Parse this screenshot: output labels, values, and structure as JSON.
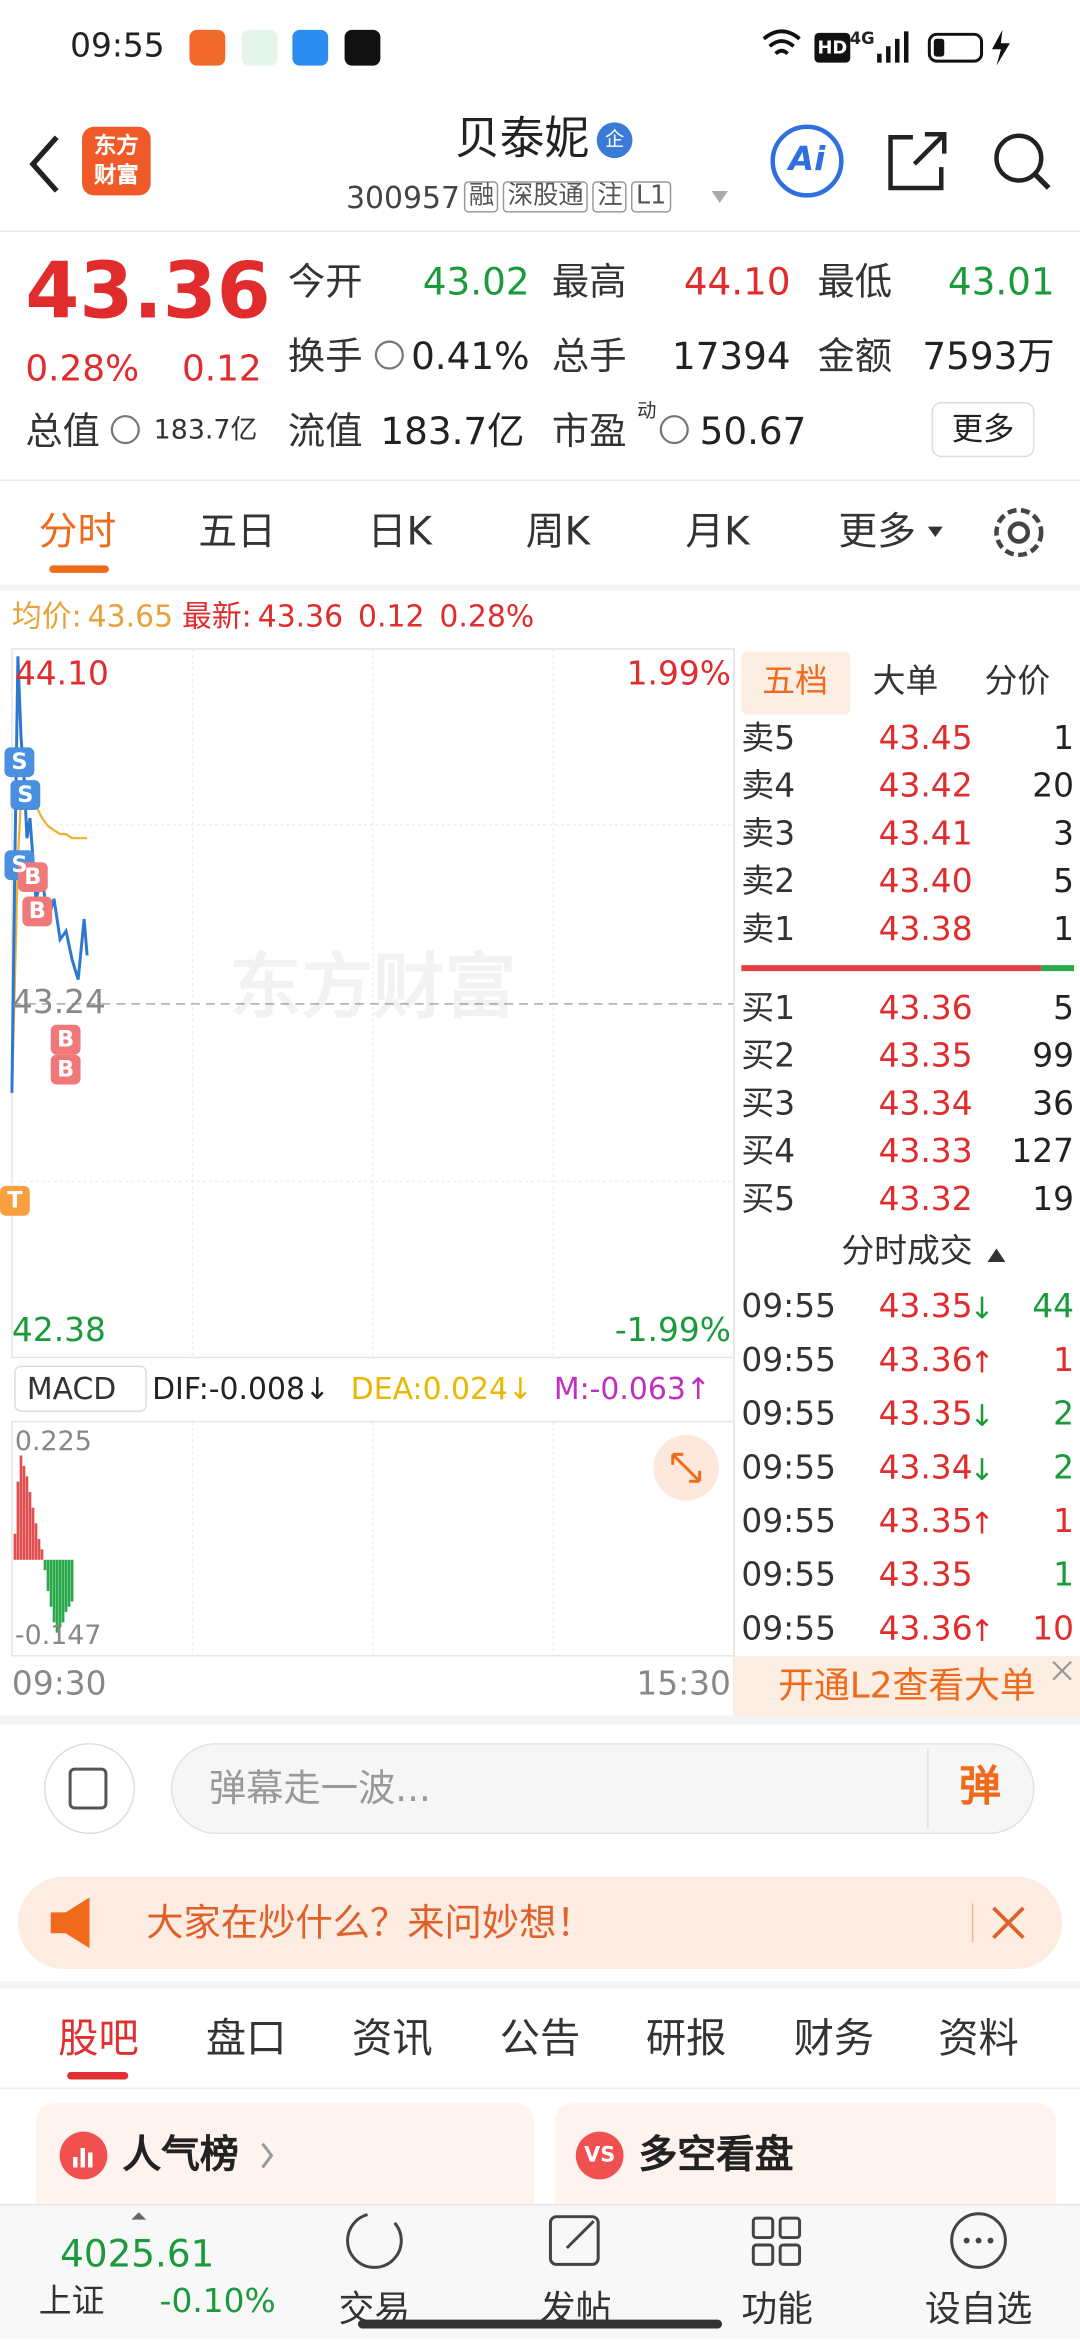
{
  "status_bar": {
    "time": "09:55",
    "hd": "HD",
    "network": "4G"
  },
  "header": {
    "logo_lines": [
      "东方",
      "财富"
    ],
    "title": "贝泰妮",
    "badge": "企",
    "code": "300957",
    "tags": [
      "融",
      "深股通",
      "注",
      "L1"
    ],
    "ai": "Ai"
  },
  "quote": {
    "price": "43.36",
    "change_pct": "0.28%",
    "change": "0.12",
    "fields": [
      {
        "label": "今开",
        "value": "43.02",
        "color": "#1a9a3a"
      },
      {
        "label": "最高",
        "value": "44.10",
        "color": "#e02c2c"
      },
      {
        "label": "最低",
        "value": "43.01",
        "color": "#1a9a3a"
      },
      {
        "label": "换手",
        "value": "0.41%",
        "color": "#222222"
      },
      {
        "label": "总手",
        "value": "17394",
        "color": "#222222"
      },
      {
        "label": "金额",
        "value": "7593万",
        "color": "#222222"
      }
    ],
    "market_cap": {
      "label": "总值",
      "value": "183.7亿"
    },
    "float_cap": {
      "label": "流值",
      "value": "183.7亿"
    },
    "pe": {
      "label": "市盈",
      "sup": "动",
      "value": "50.67"
    },
    "more": "更多"
  },
  "tabs": [
    "分时",
    "五日",
    "日K",
    "周K",
    "月K",
    "更多"
  ],
  "legend": {
    "avg_label": "均价:",
    "avg": "43.65",
    "latest_label": "最新:",
    "latest": "43.36",
    "change": "0.12",
    "change_pct": "0.28%"
  },
  "intraday": {
    "high_label": "44.10",
    "low_label": "42.38",
    "base_label": "43.24",
    "up_pct": "1.99%",
    "down_pct": "-1.99%",
    "watermark": "东方财富",
    "start_time": "09:30",
    "end_time": "15:30",
    "minutes": [
      0,
      1,
      2,
      3,
      4,
      5,
      6,
      8,
      10,
      12,
      14,
      16,
      18,
      20,
      22,
      24,
      25
    ],
    "prices": [
      43.02,
      43.6,
      44.1,
      43.9,
      43.8,
      43.65,
      43.7,
      43.5,
      43.55,
      43.45,
      43.5,
      43.4,
      43.42,
      43.35,
      43.3,
      43.45,
      43.36
    ],
    "avg": [
      43.02,
      43.3,
      43.6,
      43.75,
      43.8,
      43.78,
      43.77,
      43.73,
      43.7,
      43.68,
      43.67,
      43.66,
      43.66,
      43.65,
      43.65,
      43.65,
      43.65
    ],
    "markers": [
      "S",
      "S",
      "S",
      "B",
      "B",
      "B",
      "B",
      "T"
    ]
  },
  "macd": {
    "label": "MACD",
    "dif": "DIF:-0.008↓",
    "dea": "DEA:0.024↓",
    "m": "M:-0.063↑",
    "top_label": "0.225",
    "bottom_label": "-0.147",
    "hist": [
      0.05,
      0.15,
      0.2,
      0.18,
      0.16,
      0.13,
      0.1,
      0.07,
      0.04,
      0.02,
      -0.02,
      -0.06,
      -0.09,
      -0.12,
      -0.14,
      -0.13,
      -0.12,
      -0.1,
      -0.09,
      -0.08
    ]
  },
  "book": {
    "tabs": [
      "五档",
      "大单",
      "分价"
    ],
    "asks": [
      {
        "label": "卖5",
        "price": "43.45",
        "vol": "1"
      },
      {
        "label": "卖4",
        "price": "43.42",
        "vol": "20"
      },
      {
        "label": "卖3",
        "price": "43.41",
        "vol": "3"
      },
      {
        "label": "卖2",
        "price": "43.40",
        "vol": "5"
      },
      {
        "label": "卖1",
        "price": "43.38",
        "vol": "1"
      }
    ],
    "bids": [
      {
        "label": "买1",
        "price": "43.36",
        "vol": "5"
      },
      {
        "label": "买2",
        "price": "43.35",
        "vol": "99"
      },
      {
        "label": "买3",
        "price": "43.34",
        "vol": "36"
      },
      {
        "label": "买4",
        "price": "43.33",
        "vol": "127"
      },
      {
        "label": "买5",
        "price": "43.32",
        "vol": "19"
      }
    ]
  },
  "trades": {
    "title": "分时成交",
    "rows": [
      {
        "time": "09:55",
        "price": "43.35",
        "arrow": "↓",
        "vol": "44"
      },
      {
        "time": "09:55",
        "price": "43.36",
        "arrow": "↑",
        "vol": "1"
      },
      {
        "time": "09:55",
        "price": "43.35",
        "arrow": "↓",
        "vol": "2"
      },
      {
        "time": "09:55",
        "price": "43.34",
        "arrow": "↓",
        "vol": "2"
      },
      {
        "time": "09:55",
        "price": "43.35",
        "arrow": "↑",
        "vol": "1"
      },
      {
        "time": "09:55",
        "price": "43.35",
        "vol": "1"
      },
      {
        "time": "09:55",
        "price": "43.36",
        "arrow": "↑",
        "vol": "10"
      }
    ]
  },
  "l2_banner": "开通L2查看大单",
  "comment": {
    "placeholder": "弹幕走一波...",
    "button": "弹"
  },
  "banner": "大家在炒什么？来问妙想！",
  "section_tabs": [
    "股吧",
    "盘口",
    "资讯",
    "公告",
    "研报",
    "财务",
    "资料"
  ],
  "cards": [
    {
      "title": "人气榜"
    },
    {
      "icon": "VS",
      "title": "多空看盘"
    }
  ],
  "nav": {
    "index": {
      "value": "4025.61",
      "name": "上证",
      "change": "-0.10%"
    },
    "items": [
      "交易",
      "发帖",
      "功能",
      "设自选"
    ]
  }
}
